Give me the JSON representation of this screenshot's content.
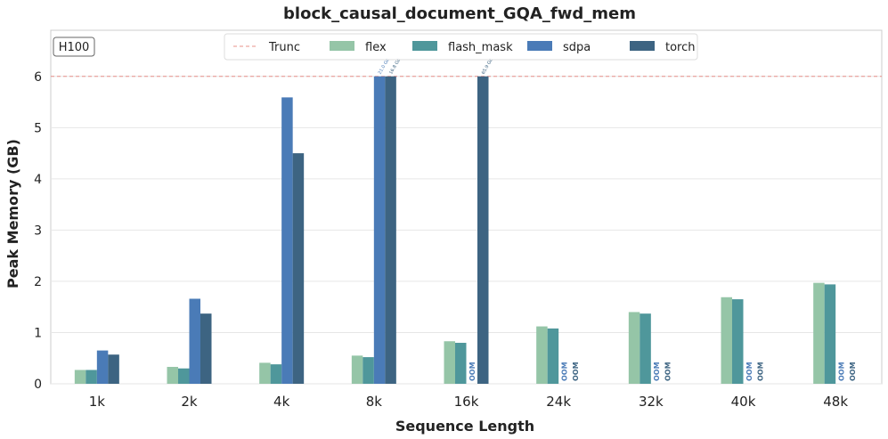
{
  "chart_data": {
    "type": "bar",
    "title": "block_causal_document_GQA_fwd_mem",
    "xlabel": "Sequence Length",
    "ylabel": "Peak Memory (GB)",
    "badge": "H100",
    "categories": [
      "1k",
      "2k",
      "4k",
      "8k",
      "16k",
      "24k",
      "32k",
      "40k",
      "48k"
    ],
    "ylim": [
      0,
      6.9
    ],
    "yticks": [
      0,
      1,
      2,
      3,
      4,
      5,
      6
    ],
    "grid": true,
    "legend_position": "top-center",
    "truncation": {
      "label": "Trunc",
      "value": 6,
      "color": "#e8908a"
    },
    "oom_label": "OOM",
    "series": [
      {
        "name": "flex",
        "color": "#95c5a7",
        "values": [
          0.27,
          0.33,
          0.41,
          0.55,
          0.83,
          1.12,
          1.4,
          1.69,
          1.97
        ]
      },
      {
        "name": "flash_mask",
        "color": "#4f979b",
        "values": [
          0.27,
          0.3,
          0.38,
          0.52,
          0.8,
          1.08,
          1.37,
          1.65,
          1.94
        ]
      },
      {
        "name": "sdpa",
        "color": "#4a7bb7",
        "values": [
          0.65,
          1.66,
          5.59,
          6,
          "OOM",
          "OOM",
          "OOM",
          "OOM",
          "OOM"
        ],
        "overflow_labels": [
          null,
          null,
          null,
          "21.0 GB",
          null,
          null,
          null,
          null,
          null
        ]
      },
      {
        "name": "torch",
        "color": "#3d6482",
        "values": [
          0.57,
          1.37,
          4.5,
          6,
          6,
          "OOM",
          "OOM",
          "OOM",
          "OOM"
        ],
        "overflow_labels": [
          null,
          null,
          null,
          "16.8 GB",
          "65.9 GB",
          null,
          null,
          null,
          null
        ]
      }
    ]
  }
}
